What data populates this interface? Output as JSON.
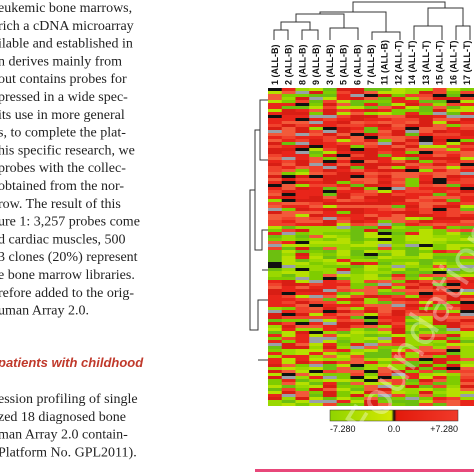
{
  "body_text": {
    "lines": [
      "eukemic bone marrows,",
      "rich a cDNA microarray",
      "ilable and established in",
      "n derives mainly from",
      "out contains probes for",
      "pressed in a wide spec-",
      "its use in more general",
      "s, to complete the plat-",
      "his specific research, we",
      "probes with the collec-",
      "obtained from the nor-",
      "row. The result of this",
      "ure 1: 3,257 probes come",
      "d cardiac muscles, 500",
      "3 clones (20%) represent",
      "e bone marrow libraries.",
      "refore added to the orig-",
      "uman Array 2.0."
    ],
    "heading": "patients with childhood",
    "lines_after": [
      "ession profiling of single",
      "zed 18 diagnosed bone",
      "man Array 2.0 contain-",
      "Platform No. GPL2011)."
    ]
  },
  "figure": {
    "columns": [
      "1 (ALL-B)",
      "2 (ALL-B)",
      "8 (ALL-B)",
      "9 (ALL-B)",
      "3 (ALL-B)",
      "5 (ALL-B)",
      "6 (ALL-B)",
      "7 (ALL-B)",
      "11 (ALL-B)",
      "12 (ALL-T)",
      "14 (ALL-T)",
      "13 (ALL-T)",
      "15 (ALL-T)",
      "16 (ALL-T)",
      "17 (ALL-T)"
    ],
    "scale_labels": [
      "-7.280",
      "0.0",
      "+7.280"
    ],
    "watermark": "Foundation"
  }
}
